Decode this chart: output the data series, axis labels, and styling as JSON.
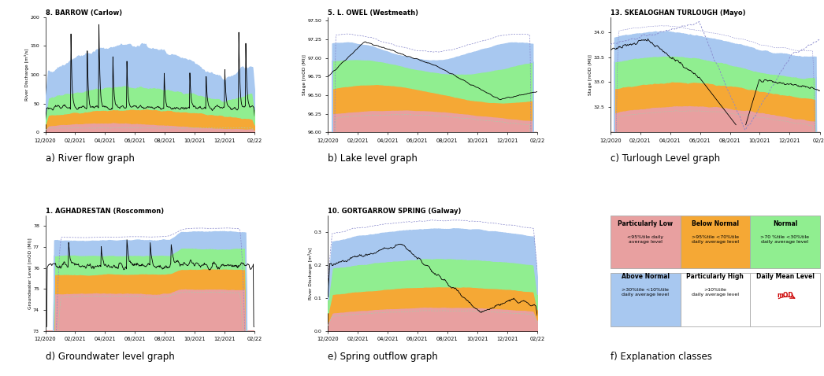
{
  "fig_width": 10.46,
  "fig_height": 4.78,
  "background_color": "#ffffff",
  "panel_titles": [
    "8. BARROW (Carlow)",
    "5. L. OWEL (Westmeath)",
    "13. SKEALOGHAN TURLOUGH (Mayo)",
    "1. AGHADRESTAN (Roscommon)",
    "10. GORTGARROW SPRING (Galway)"
  ],
  "panel_labels": [
    "a) River flow graph",
    "b) Lake level graph",
    "c) Turlough Level graph",
    "d) Groundwater level graph",
    "e) Spring outflow graph",
    "f) Explanation classes"
  ],
  "colors": {
    "pink": "#e8a0a0",
    "orange": "#f5a835",
    "green": "#90ee90",
    "blue": "#a8c8f0",
    "dashed_blue": "#8888cc",
    "dashed_green": "#aaccaa",
    "black_line": "#000000"
  },
  "x_tick_labels": [
    "12/2020",
    "02/2021",
    "04/2021",
    "06/2021",
    "08/2021",
    "10/2021",
    "12/2021",
    "02/22"
  ],
  "n_points": 450,
  "barrow": {
    "ylabel": "River Discharge [m³/s]",
    "ylim": [
      0,
      200
    ],
    "yticks": [
      0,
      50,
      100,
      150,
      200
    ]
  },
  "lowel": {
    "ylabel": "Stage [mOD (Ml)]",
    "ylim": [
      96.0,
      97.55
    ],
    "yticks": [
      96.0,
      96.25,
      96.5,
      96.75,
      97.0,
      97.25,
      97.5
    ]
  },
  "skealoghan": {
    "ylabel": "Stage [mOD (Ml)]",
    "ylim": [
      32.0,
      34.3
    ],
    "yticks": [
      32.5,
      33.0,
      33.5,
      34.0
    ]
  },
  "aghadrestan": {
    "ylabel": "Groundwater Level [mOD (Ml)]",
    "ylim": [
      73.0,
      78.5
    ],
    "yticks": [
      73,
      74,
      75,
      76,
      77,
      78
    ]
  },
  "gortgarrow": {
    "ylabel": "River Discharge [m³/s]",
    "ylim": [
      0.0,
      0.35
    ],
    "yticks": [
      0.0,
      0.1,
      0.2,
      0.3
    ]
  },
  "legend_table": {
    "col_headers": [
      "Particularly Low",
      "Below Normal",
      "Normal"
    ],
    "col_headers2": [
      "Above Normal",
      "Particularly High",
      "Daily Mean Level"
    ],
    "col_desc1": [
      "<95%tile daily\naverage level",
      ">95%tile <70%tile\ndaily average level",
      ">70 %tile <30%tile\ndaily average level"
    ],
    "col_desc2": [
      ">30%tile <10%tile\ndaily average level",
      ">10%tile\ndaily average level",
      "mOD"
    ],
    "row_colors1": [
      "#e8a0a0",
      "#f5a835",
      "#90ee90"
    ],
    "row_colors2": [
      "#a8c8f0",
      "#ffffff",
      "#ffffff"
    ],
    "mOD_color": "#cc0000"
  }
}
